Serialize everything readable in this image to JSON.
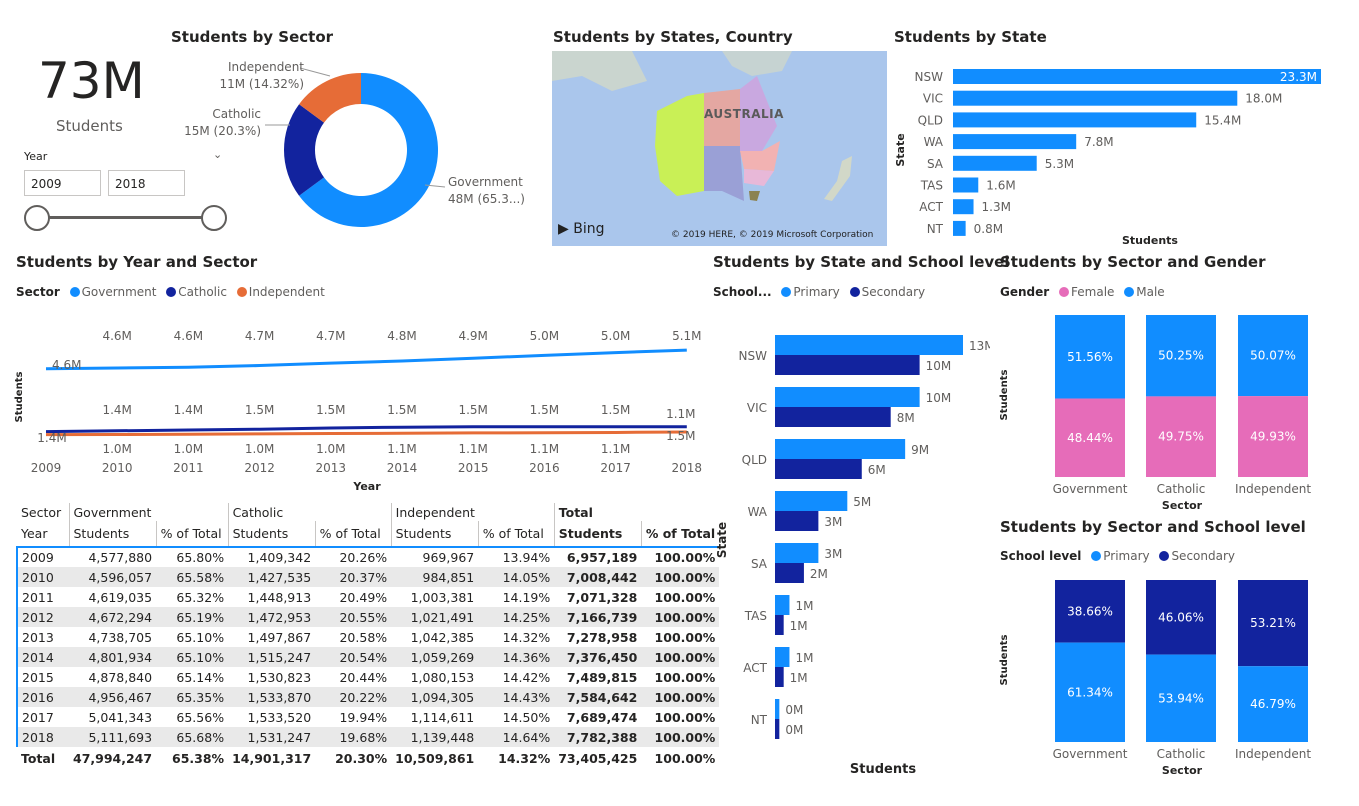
{
  "kpi": {
    "value": "73M",
    "label": "Students"
  },
  "slicer": {
    "label": "Year",
    "from": "2009",
    "to": "2018"
  },
  "donut": {
    "title": "Students by Sector",
    "slices": [
      {
        "name": "Government",
        "value": 48,
        "label1": "Government",
        "label2": "48M (65.3...)",
        "color": "#118dff"
      },
      {
        "name": "Catholic",
        "value": 15,
        "label1": "Catholic",
        "label2": "15M (20.3%)",
        "color": "#12239e"
      },
      {
        "name": "Independent",
        "value": 11,
        "label1": "Independent",
        "label2": "11M (14.32%)",
        "color": "#e66c37"
      }
    ]
  },
  "map": {
    "title": "Students by States, Country",
    "country_label": "AUSTRALIA",
    "bing": "Bing",
    "copyright": "© 2019 HERE, © 2019 Microsoft Corporation"
  },
  "colors": {
    "government": "#118dff",
    "catholic": "#12239e",
    "independent": "#e66c37",
    "female": "#e66cb9",
    "male": "#118dff",
    "primary": "#118dff",
    "secondary": "#12239e"
  },
  "chart_data": [
    {
      "type": "bar",
      "title": "Students by State",
      "ylabel": "State",
      "xlabel": "Students",
      "categories": [
        "NSW",
        "VIC",
        "QLD",
        "WA",
        "SA",
        "TAS",
        "ACT",
        "NT"
      ],
      "values": [
        23.3,
        18.0,
        15.4,
        7.8,
        5.3,
        1.6,
        1.3,
        0.8
      ],
      "labels": [
        "23.3M",
        "18.0M",
        "15.4M",
        "7.8M",
        "5.3M",
        "1.6M",
        "1.3M",
        "0.8M"
      ]
    },
    {
      "type": "line",
      "title": "Students by Year and Sector",
      "legend_title": "Sector",
      "xlabel": "Year",
      "ylabel": "Students",
      "x": [
        "2009",
        "2010",
        "2011",
        "2012",
        "2013",
        "2014",
        "2015",
        "2016",
        "2017",
        "2018"
      ],
      "series": [
        {
          "name": "Government",
          "values": [
            4.58,
            4.6,
            4.62,
            4.67,
            4.74,
            4.8,
            4.88,
            4.96,
            5.04,
            5.11
          ],
          "labels": [
            "4.6M",
            "4.6M",
            "4.6M",
            "4.7M",
            "4.7M",
            "4.8M",
            "4.9M",
            "5.0M",
            "5.0M",
            "5.1M"
          ]
        },
        {
          "name": "Catholic",
          "values": [
            1.41,
            1.43,
            1.45,
            1.47,
            1.5,
            1.52,
            1.53,
            1.53,
            1.53,
            1.53
          ],
          "labels": [
            "1.4M",
            "1.4M",
            "1.4M",
            "1.5M",
            "1.5M",
            "1.5M",
            "1.5M",
            "1.5M",
            "1.5M",
            "1.5M"
          ]
        },
        {
          "name": "Independent",
          "values": [
            0.97,
            0.98,
            1.0,
            1.02,
            1.04,
            1.06,
            1.08,
            1.09,
            1.11,
            1.14
          ],
          "labels": [
            "1.0M",
            "1.0M",
            "1.0M",
            "1.0M",
            "1.0M",
            "1.1M",
            "1.1M",
            "1.1M",
            "1.1M",
            "1.1M"
          ]
        }
      ]
    },
    {
      "type": "bar",
      "title": "Students by State and School level",
      "legend_title": "School...",
      "ylabel": "State",
      "xlabel": "Students",
      "categories": [
        "NSW",
        "VIC",
        "QLD",
        "WA",
        "SA",
        "TAS",
        "ACT",
        "NT"
      ],
      "series": [
        {
          "name": "Primary",
          "values": [
            13,
            10,
            9,
            5,
            3,
            1,
            1,
            0.3
          ],
          "labels": [
            "13M",
            "10M",
            "9M",
            "5M",
            "3M",
            "1M",
            "1M",
            "0M"
          ]
        },
        {
          "name": "Secondary",
          "values": [
            10,
            8,
            6,
            3,
            2,
            0.6,
            0.6,
            0.3
          ],
          "labels": [
            "10M",
            "8M",
            "6M",
            "3M",
            "2M",
            "1M",
            "1M",
            "0M"
          ]
        }
      ]
    },
    {
      "type": "bar",
      "stacked": "100%",
      "title": "Students by Sector and Gender",
      "legend_title": "Gender",
      "xlabel": "Sector",
      "ylabel": "Students",
      "categories": [
        "Government",
        "Catholic",
        "Independent"
      ],
      "series": [
        {
          "name": "Female",
          "values": [
            48.44,
            49.75,
            49.93
          ],
          "labels": [
            "48.44%",
            "49.75%",
            "49.93%"
          ]
        },
        {
          "name": "Male",
          "values": [
            51.56,
            50.25,
            50.07
          ],
          "labels": [
            "51.56%",
            "50.25%",
            "50.07%"
          ]
        }
      ]
    },
    {
      "type": "bar",
      "stacked": "100%",
      "title": "Students by Sector and School level",
      "legend_title": "School level",
      "xlabel": "Sector",
      "ylabel": "Students",
      "categories": [
        "Government",
        "Catholic",
        "Independent"
      ],
      "series": [
        {
          "name": "Primary",
          "values": [
            61.34,
            53.94,
            46.79
          ],
          "labels": [
            "61.34%",
            "53.94%",
            "46.79%"
          ]
        },
        {
          "name": "Secondary",
          "values": [
            38.66,
            46.06,
            53.21
          ],
          "labels": [
            "38.66%",
            "46.06%",
            "53.21%"
          ]
        }
      ]
    },
    {
      "type": "table",
      "header_row1": [
        "Sector",
        "Government",
        "Catholic",
        "Independent",
        "Total"
      ],
      "header_row2": [
        "Year",
        "Students",
        "% of Total",
        "Students",
        "% of Total",
        "Students",
        "% of Total",
        "Students",
        "% of Total"
      ],
      "rows": [
        [
          "2009",
          "4,577,880",
          "65.80%",
          "1,409,342",
          "20.26%",
          "969,967",
          "13.94%",
          "6,957,189",
          "100.00%"
        ],
        [
          "2010",
          "4,596,057",
          "65.58%",
          "1,427,535",
          "20.37%",
          "984,851",
          "14.05%",
          "7,008,442",
          "100.00%"
        ],
        [
          "2011",
          "4,619,035",
          "65.32%",
          "1,448,913",
          "20.49%",
          "1,003,381",
          "14.19%",
          "7,071,328",
          "100.00%"
        ],
        [
          "2012",
          "4,672,294",
          "65.19%",
          "1,472,953",
          "20.55%",
          "1,021,491",
          "14.25%",
          "7,166,739",
          "100.00%"
        ],
        [
          "2013",
          "4,738,705",
          "65.10%",
          "1,497,867",
          "20.58%",
          "1,042,385",
          "14.32%",
          "7,278,958",
          "100.00%"
        ],
        [
          "2014",
          "4,801,934",
          "65.10%",
          "1,515,247",
          "20.54%",
          "1,059,269",
          "14.36%",
          "7,376,450",
          "100.00%"
        ],
        [
          "2015",
          "4,878,840",
          "65.14%",
          "1,530,823",
          "20.44%",
          "1,080,153",
          "14.42%",
          "7,489,815",
          "100.00%"
        ],
        [
          "2016",
          "4,956,467",
          "65.35%",
          "1,533,870",
          "20.22%",
          "1,094,305",
          "14.43%",
          "7,584,642",
          "100.00%"
        ],
        [
          "2017",
          "5,041,343",
          "65.56%",
          "1,533,520",
          "19.94%",
          "1,114,611",
          "14.50%",
          "7,689,474",
          "100.00%"
        ],
        [
          "2018",
          "5,111,693",
          "65.68%",
          "1,531,247",
          "19.68%",
          "1,139,448",
          "14.64%",
          "7,782,388",
          "100.00%"
        ]
      ],
      "total": [
        "Total",
        "47,994,247",
        "65.38%",
        "14,901,317",
        "20.30%",
        "10,509,861",
        "14.32%",
        "73,405,425",
        "100.00%"
      ]
    }
  ]
}
